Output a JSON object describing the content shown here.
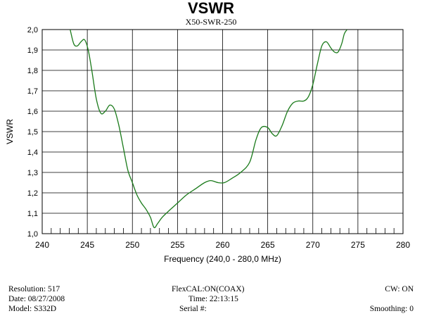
{
  "chart_data": {
    "type": "line",
    "title": "VSWR",
    "subtitle": "X50-SWR-250",
    "xlabel": "Frequency (240,0 - 280,0 MHz)",
    "ylabel": "VSWR",
    "xlim": [
      240,
      280
    ],
    "ylim": [
      1.0,
      2.0
    ],
    "x_ticks": [
      240,
      245,
      250,
      255,
      260,
      265,
      270,
      275,
      280
    ],
    "x_tick_labels": [
      "240",
      "245",
      "250",
      "255",
      "260",
      "265",
      "270",
      "275",
      "280"
    ],
    "y_ticks": [
      1.0,
      1.1,
      1.2,
      1.3,
      1.4,
      1.5,
      1.6,
      1.7,
      1.8,
      1.9,
      2.0
    ],
    "y_tick_labels": [
      "1,0",
      "1,1",
      "1,2",
      "1,3",
      "1,4",
      "1,5",
      "1,6",
      "1,7",
      "1,8",
      "1,9",
      "2,0"
    ],
    "grid": true,
    "series": [
      {
        "color": "#1a7a1a",
        "x": [
          243.1,
          243.5,
          243.9,
          244.3,
          244.7,
          245.1,
          245.5,
          246.0,
          246.5,
          247.0,
          247.5,
          248.0,
          248.5,
          249.0,
          249.5,
          250.0,
          250.5,
          251.0,
          251.5,
          252.0,
          252.4,
          252.8,
          253.3,
          254.0,
          255.0,
          256.0,
          257.0,
          258.0,
          258.7,
          259.5,
          260.2,
          261.0,
          262.0,
          263.0,
          263.7,
          264.3,
          265.0,
          265.5,
          266.0,
          266.6,
          267.2,
          267.8,
          268.4,
          269.0,
          269.5,
          270.0,
          270.5,
          271.0,
          271.5,
          272.0,
          272.4,
          272.8,
          273.2,
          273.5,
          273.8
        ],
        "y": [
          2.0,
          1.93,
          1.92,
          1.94,
          1.95,
          1.9,
          1.8,
          1.66,
          1.59,
          1.6,
          1.63,
          1.61,
          1.53,
          1.42,
          1.31,
          1.25,
          1.19,
          1.15,
          1.12,
          1.08,
          1.03,
          1.05,
          1.08,
          1.11,
          1.15,
          1.19,
          1.22,
          1.25,
          1.26,
          1.25,
          1.25,
          1.27,
          1.3,
          1.35,
          1.46,
          1.52,
          1.52,
          1.49,
          1.48,
          1.53,
          1.6,
          1.64,
          1.65,
          1.65,
          1.67,
          1.73,
          1.83,
          1.92,
          1.94,
          1.91,
          1.89,
          1.89,
          1.93,
          1.98,
          2.0
        ]
      }
    ]
  },
  "info": {
    "resolution": "Resolution:  517",
    "date": "Date: 08/27/2008",
    "model": "Model:  S332D",
    "flexcal": "FlexCAL:ON(COAX)",
    "time": "Time:  22:13:15",
    "serial": "Serial #:",
    "cw": "CW: ON",
    "smoothing": "Smoothing:  0"
  }
}
